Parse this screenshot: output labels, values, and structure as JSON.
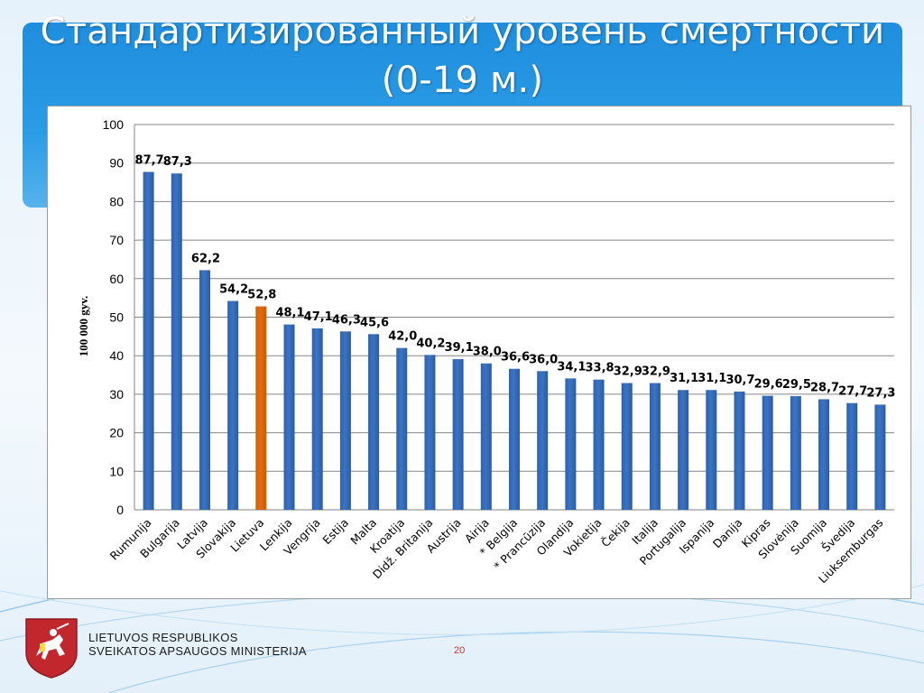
{
  "slide": {
    "title_line1": "Стандартизированный уровень смертности",
    "title_line2": "(0-19 м.)",
    "page_number": "20"
  },
  "ministry": {
    "line1": "LIETUVOS RESPUBLIKOS",
    "line2": "SVEIKATOS APSAUGOS MINISTERIJA"
  },
  "colors": {
    "bar": "#3a74c4",
    "highlight_bar": "#e46c0a",
    "banner": "#2594e0"
  },
  "chart_data": {
    "type": "bar",
    "title": "",
    "xlabel": "",
    "ylabel": "100 000 gyv.",
    "ylim": [
      0,
      100
    ],
    "yticks": [
      "0",
      "10",
      "20",
      "30",
      "40",
      "50",
      "60",
      "70",
      "80",
      "90",
      "100"
    ],
    "grid": true,
    "highlight": "Lietuva",
    "categories": [
      "Rumunija",
      "Bulgarija",
      "Latvija",
      "Slovakija",
      "Lietuva",
      "Lenkija",
      "Vengrija",
      "Estija",
      "Malta",
      "Kroatija",
      "Didž. Britanija",
      "Austrija",
      "Airija",
      "* Belgija",
      "* Prancūzija",
      "Olandija",
      "Vokietija",
      "Čekija",
      "Italija",
      "Portugalija",
      "Ispanija",
      "Danija",
      "Kipras",
      "Slovėnija",
      "Suomija",
      "Švedija",
      "Liuksemburgas"
    ],
    "values": [
      87.7,
      87.3,
      62.2,
      54.2,
      52.8,
      48.1,
      47.1,
      46.3,
      45.6,
      42.0,
      40.2,
      39.1,
      38.0,
      36.6,
      36.0,
      34.1,
      33.8,
      32.9,
      32.9,
      31.1,
      31.1,
      30.7,
      29.6,
      29.5,
      28.7,
      27.7,
      27.3
    ],
    "labels": [
      "87,7",
      "87,3",
      "62,2",
      "54,2",
      "52,8",
      "48,1",
      "47,1",
      "46,3",
      "45,6",
      "42,0",
      "40,2",
      "39,1",
      "38,0",
      "36,6",
      "36,0",
      "34,1",
      "33,8",
      "32,9",
      "32,9",
      "31,1",
      "31,1",
      "30,7",
      "29,6",
      "29,5",
      "28,7",
      "27,7",
      "27,3"
    ]
  }
}
